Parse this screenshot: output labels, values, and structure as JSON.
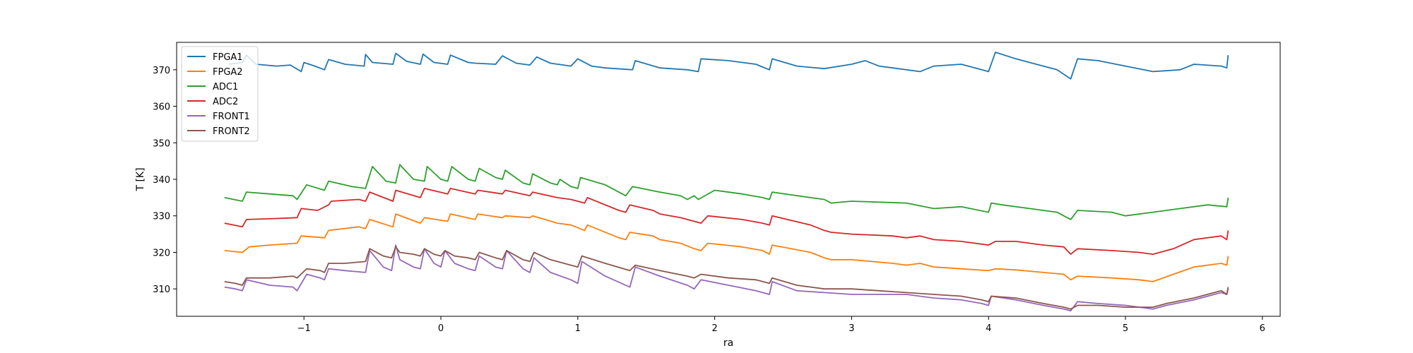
{
  "chart_data": {
    "type": "line",
    "title": "",
    "xlabel": "ra",
    "ylabel": "T [K]",
    "xlim": [
      -1.93,
      6.13
    ],
    "ylim": [
      302.5,
      377.5
    ],
    "xticks": [
      -1,
      0,
      1,
      2,
      3,
      4,
      5,
      6
    ],
    "xtick_labels": [
      "−1",
      "0",
      "1",
      "2",
      "3",
      "4",
      "5",
      "6"
    ],
    "yticks": [
      310,
      320,
      330,
      340,
      350,
      360,
      370
    ],
    "ytick_labels": [
      "310",
      "320",
      "330",
      "340",
      "350",
      "360",
      "370"
    ],
    "grid": false,
    "legend_position": "top-left",
    "series": [
      {
        "name": "FPGA1",
        "color": "#1f77b4",
        "x": [
          -1.55,
          -1.45,
          -1.42,
          -1.35,
          -1.2,
          -1.1,
          -1.02,
          -1.0,
          -0.92,
          -0.85,
          -0.82,
          -0.7,
          -0.56,
          -0.55,
          -0.5,
          -0.35,
          -0.33,
          -0.25,
          -0.15,
          -0.13,
          -0.05,
          0.05,
          0.07,
          0.2,
          0.25,
          0.4,
          0.45,
          0.55,
          0.65,
          0.7,
          0.8,
          0.95,
          1.0,
          1.1,
          1.2,
          1.4,
          1.42,
          1.6,
          1.8,
          1.88,
          1.9,
          2.1,
          2.3,
          2.4,
          2.42,
          2.6,
          2.8,
          3.0,
          3.1,
          3.2,
          3.3,
          3.5,
          3.6,
          3.8,
          3.95,
          4.0,
          4.05,
          4.2,
          4.3,
          4.5,
          4.6,
          4.65,
          4.8,
          5.0,
          5.2,
          5.4,
          5.5,
          5.7,
          5.74,
          5.75
        ],
        "values": [
          371.5,
          372.0,
          374.0,
          371.5,
          371.0,
          371.3,
          369.5,
          372.0,
          371.0,
          370.0,
          372.8,
          371.5,
          371.0,
          374.2,
          372.0,
          371.5,
          374.5,
          372.3,
          371.5,
          374.3,
          372.0,
          371.5,
          374.0,
          372.0,
          371.8,
          371.5,
          373.8,
          371.8,
          371.3,
          373.5,
          371.8,
          371.0,
          373.0,
          371.0,
          370.5,
          370.0,
          372.5,
          370.5,
          370.0,
          369.5,
          373.0,
          372.5,
          371.5,
          370.0,
          373.0,
          371.0,
          370.3,
          371.5,
          372.5,
          371.0,
          370.5,
          369.5,
          371.0,
          371.5,
          370.0,
          369.5,
          374.8,
          373.0,
          372.0,
          370.0,
          367.5,
          373.0,
          372.5,
          371.0,
          369.5,
          370.0,
          371.5,
          371.0,
          370.5,
          374.0
        ]
      },
      {
        "name": "FPGA2",
        "color": "#ff7f0e",
        "x": [
          -1.58,
          -1.45,
          -1.4,
          -1.25,
          -1.05,
          -1.02,
          -0.85,
          -0.82,
          -0.6,
          -0.55,
          -0.52,
          -0.35,
          -0.33,
          -0.15,
          -0.12,
          0.05,
          0.07,
          0.25,
          0.27,
          0.45,
          0.47,
          0.65,
          0.67,
          0.85,
          0.95,
          1.05,
          1.07,
          1.3,
          1.35,
          1.38,
          1.55,
          1.6,
          1.75,
          1.85,
          1.9,
          1.95,
          2.2,
          2.35,
          2.4,
          2.42,
          2.7,
          2.8,
          2.85,
          3.0,
          3.3,
          3.4,
          3.5,
          3.6,
          3.8,
          4.0,
          4.05,
          4.2,
          4.4,
          4.55,
          4.6,
          4.65,
          4.9,
          5.1,
          5.2,
          5.35,
          5.5,
          5.7,
          5.74,
          5.75
        ],
        "values": [
          320.5,
          320.0,
          321.5,
          322.0,
          322.5,
          324.5,
          324.0,
          326.0,
          327.0,
          326.5,
          329.0,
          327.0,
          330.5,
          328.0,
          329.5,
          328.5,
          330.5,
          329.0,
          330.5,
          329.5,
          330.0,
          329.5,
          330.0,
          328.0,
          327.5,
          326.0,
          327.5,
          324.0,
          323.5,
          325.5,
          324.5,
          323.5,
          322.5,
          321.0,
          320.5,
          322.5,
          321.5,
          320.5,
          319.5,
          322.0,
          320.0,
          318.5,
          318.0,
          318.0,
          317.0,
          316.5,
          317.0,
          316.0,
          315.5,
          315.0,
          315.5,
          315.2,
          314.5,
          314.0,
          312.5,
          313.5,
          313.0,
          312.5,
          312.0,
          314.0,
          316.0,
          317.0,
          316.5,
          319.0
        ]
      },
      {
        "name": "ADC1",
        "color": "#2ca02c",
        "x": [
          -1.58,
          -1.45,
          -1.42,
          -1.25,
          -1.08,
          -1.05,
          -0.98,
          -0.85,
          -0.82,
          -0.65,
          -0.55,
          -0.5,
          -0.4,
          -0.33,
          -0.3,
          -0.2,
          -0.12,
          -0.1,
          0.0,
          0.05,
          0.08,
          0.2,
          0.25,
          0.28,
          0.4,
          0.45,
          0.47,
          0.6,
          0.65,
          0.67,
          0.8,
          0.85,
          0.87,
          0.95,
          1.0,
          1.02,
          1.2,
          1.35,
          1.4,
          1.6,
          1.75,
          1.8,
          1.85,
          1.88,
          2.0,
          2.2,
          2.35,
          2.4,
          2.42,
          2.7,
          2.8,
          2.85,
          3.0,
          3.4,
          3.6,
          3.8,
          4.0,
          4.02,
          4.1,
          4.3,
          4.5,
          4.6,
          4.65,
          4.9,
          5.0,
          5.2,
          5.4,
          5.6,
          5.74,
          5.75
        ],
        "values": [
          335.0,
          334.0,
          336.5,
          336.0,
          335.5,
          334.5,
          338.5,
          337.0,
          339.5,
          338.0,
          337.5,
          343.5,
          339.5,
          339.0,
          344.0,
          340.0,
          339.5,
          343.5,
          340.0,
          339.5,
          343.5,
          340.0,
          339.5,
          343.0,
          340.5,
          340.0,
          342.5,
          339.0,
          338.5,
          341.5,
          339.0,
          338.5,
          340.0,
          338.0,
          337.5,
          340.5,
          338.5,
          335.5,
          338.0,
          336.5,
          335.5,
          334.5,
          335.5,
          334.5,
          337.0,
          336.0,
          335.0,
          334.5,
          336.5,
          335.0,
          334.5,
          333.5,
          334.0,
          333.5,
          332.0,
          332.5,
          331.0,
          333.5,
          333.0,
          332.0,
          331.0,
          329.0,
          331.5,
          331.0,
          330.0,
          331.0,
          332.0,
          333.0,
          332.5,
          335.0
        ]
      },
      {
        "name": "ADC2",
        "color": "#d62728",
        "x": [
          -1.58,
          -1.45,
          -1.42,
          -1.25,
          -1.05,
          -1.02,
          -0.9,
          -0.82,
          -0.8,
          -0.6,
          -0.55,
          -0.52,
          -0.35,
          -0.33,
          -0.15,
          -0.12,
          0.05,
          0.07,
          0.25,
          0.27,
          0.45,
          0.47,
          0.65,
          0.67,
          0.85,
          0.95,
          1.05,
          1.07,
          1.3,
          1.35,
          1.38,
          1.55,
          1.6,
          1.75,
          1.85,
          1.9,
          1.95,
          2.2,
          2.35,
          2.4,
          2.42,
          2.7,
          2.8,
          2.85,
          3.0,
          3.3,
          3.4,
          3.5,
          3.6,
          3.8,
          4.0,
          4.05,
          4.2,
          4.4,
          4.55,
          4.6,
          4.65,
          4.9,
          5.1,
          5.2,
          5.35,
          5.5,
          5.7,
          5.74,
          5.75
        ],
        "values": [
          328.0,
          327.0,
          329.0,
          329.2,
          329.5,
          332.0,
          331.5,
          333.0,
          334.0,
          334.5,
          334.0,
          336.5,
          334.0,
          337.0,
          335.0,
          337.5,
          336.0,
          337.5,
          336.0,
          337.0,
          336.0,
          337.0,
          335.5,
          336.5,
          335.0,
          334.5,
          333.5,
          335.0,
          331.5,
          331.0,
          333.0,
          331.5,
          330.5,
          329.5,
          328.5,
          328.0,
          330.0,
          329.0,
          328.0,
          327.5,
          330.0,
          327.5,
          326.0,
          325.5,
          325.0,
          324.5,
          324.0,
          324.5,
          323.5,
          323.0,
          322.0,
          323.0,
          323.0,
          322.0,
          321.5,
          319.5,
          321.0,
          320.5,
          320.0,
          319.5,
          321.0,
          323.5,
          324.5,
          323.5,
          326.0
        ]
      },
      {
        "name": "FRONT1",
        "color": "#9467bd",
        "x": [
          -1.58,
          -1.5,
          -1.45,
          -1.42,
          -1.25,
          -1.08,
          -1.05,
          -0.98,
          -0.88,
          -0.85,
          -0.82,
          -0.7,
          -0.55,
          -0.52,
          -0.42,
          -0.36,
          -0.33,
          -0.3,
          -0.2,
          -0.15,
          -0.12,
          -0.05,
          0.0,
          0.03,
          0.1,
          0.2,
          0.25,
          0.28,
          0.4,
          0.45,
          0.48,
          0.6,
          0.65,
          0.68,
          0.8,
          0.95,
          1.0,
          1.03,
          1.2,
          1.38,
          1.42,
          1.6,
          1.8,
          1.85,
          1.9,
          2.1,
          2.3,
          2.4,
          2.42,
          2.6,
          2.8,
          3.0,
          3.2,
          3.4,
          3.6,
          3.8,
          3.95,
          4.0,
          4.02,
          4.2,
          4.4,
          4.55,
          4.6,
          4.65,
          4.8,
          5.0,
          5.2,
          5.3,
          5.5,
          5.7,
          5.74,
          5.75
        ],
        "values": [
          310.5,
          310.0,
          309.5,
          312.5,
          311.0,
          310.5,
          309.5,
          314.0,
          313.0,
          312.5,
          315.5,
          315.0,
          314.5,
          320.5,
          316.0,
          315.0,
          322.0,
          318.0,
          316.0,
          315.5,
          321.0,
          317.0,
          316.0,
          320.5,
          317.0,
          315.5,
          315.0,
          319.0,
          316.0,
          315.5,
          320.5,
          315.5,
          314.5,
          318.5,
          314.5,
          312.5,
          311.5,
          317.5,
          313.5,
          310.5,
          316.0,
          313.5,
          311.0,
          310.0,
          312.5,
          311.0,
          309.5,
          308.5,
          312.0,
          309.5,
          309.0,
          308.5,
          308.5,
          308.5,
          307.5,
          307.0,
          306.0,
          305.5,
          308.0,
          307.0,
          305.5,
          304.5,
          304.0,
          306.5,
          306.0,
          305.5,
          304.5,
          305.5,
          307.0,
          309.0,
          308.5,
          310.0
        ]
      },
      {
        "name": "FRONT2",
        "color": "#8c564b",
        "x": [
          -1.58,
          -1.5,
          -1.45,
          -1.42,
          -1.25,
          -1.08,
          -1.05,
          -0.98,
          -0.88,
          -0.85,
          -0.82,
          -0.7,
          -0.55,
          -0.52,
          -0.42,
          -0.36,
          -0.33,
          -0.3,
          -0.2,
          -0.15,
          -0.12,
          -0.05,
          0.0,
          0.03,
          0.1,
          0.2,
          0.25,
          0.28,
          0.4,
          0.45,
          0.48,
          0.6,
          0.65,
          0.68,
          0.8,
          0.95,
          1.0,
          1.03,
          1.2,
          1.38,
          1.42,
          1.6,
          1.8,
          1.85,
          1.9,
          2.1,
          2.3,
          2.4,
          2.42,
          2.6,
          2.8,
          3.0,
          3.2,
          3.4,
          3.6,
          3.8,
          3.95,
          4.0,
          4.02,
          4.2,
          4.4,
          4.55,
          4.6,
          4.65,
          4.8,
          5.0,
          5.2,
          5.3,
          5.5,
          5.7,
          5.74,
          5.75
        ],
        "values": [
          312.0,
          311.5,
          311.0,
          313.0,
          313.0,
          313.5,
          313.0,
          315.5,
          315.0,
          314.5,
          317.0,
          317.0,
          317.5,
          321.0,
          319.0,
          318.5,
          321.5,
          320.0,
          319.5,
          319.0,
          321.0,
          319.5,
          319.0,
          320.5,
          319.0,
          318.5,
          318.0,
          320.0,
          318.5,
          318.0,
          320.5,
          318.0,
          317.5,
          320.0,
          318.0,
          316.5,
          316.0,
          319.0,
          317.0,
          315.0,
          316.5,
          315.0,
          313.5,
          313.0,
          314.0,
          313.0,
          312.5,
          311.5,
          313.0,
          311.0,
          310.0,
          310.0,
          309.5,
          309.0,
          308.5,
          308.0,
          307.0,
          306.5,
          308.0,
          307.5,
          306.0,
          305.0,
          304.5,
          305.5,
          305.5,
          305.0,
          305.0,
          306.0,
          307.5,
          309.5,
          308.5,
          310.5
        ]
      }
    ]
  }
}
